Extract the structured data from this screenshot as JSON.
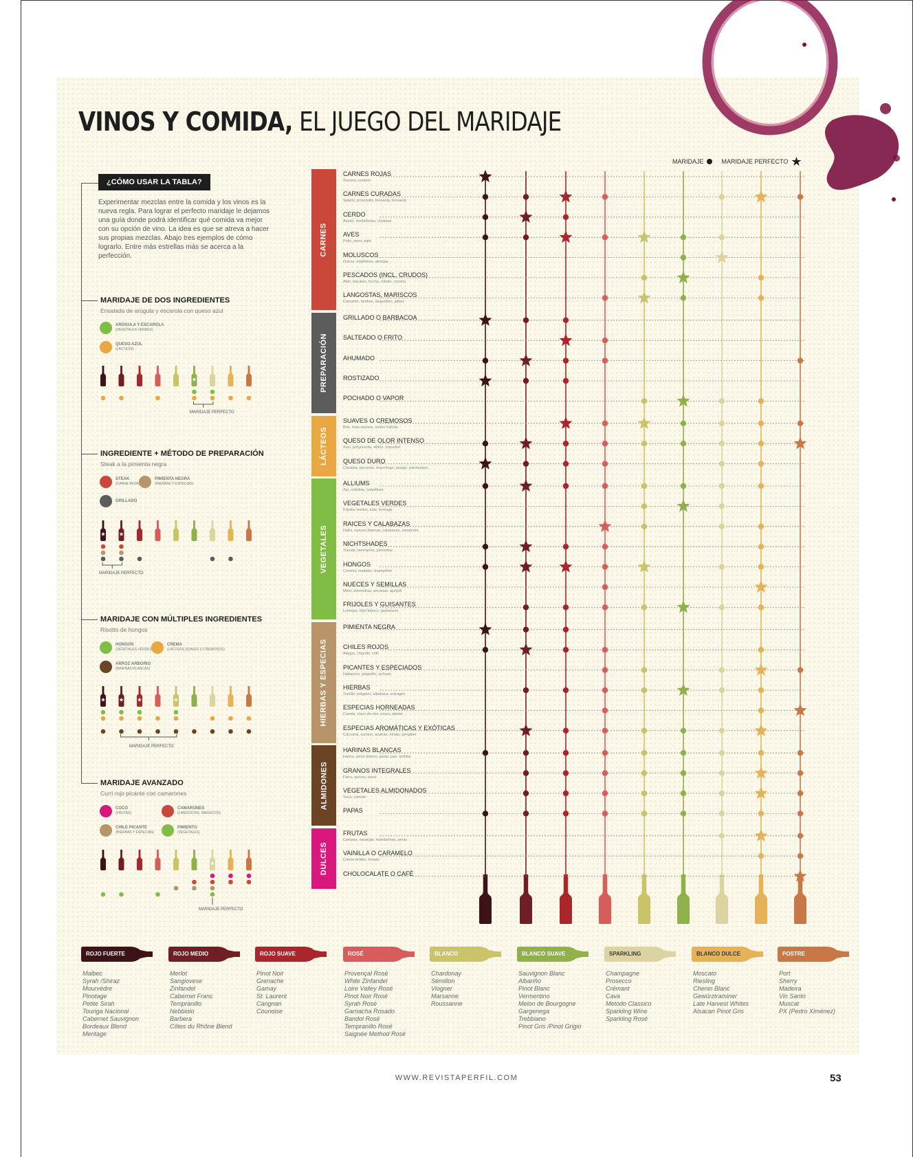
{
  "title": {
    "bold": "VINOS Y COMIDA,",
    "rest": " EL JUEGO DEL MARIDAJE"
  },
  "legend": {
    "pairing": "MARIDAJE",
    "perfect": "MARIDAJE PERFECTO"
  },
  "howto": {
    "heading": "¿CÓMO USAR LA TABLA?",
    "text": "Experimentar mezclas entre la comida y los vinos es la nueva regla. Para lograr el perfecto maridaje le dejamos una guía donde podrá identificar qué comida va mejor con su opción de vino. La idea es que se atreva a hacer sus propias mezclas. Abajo tres ejemplos de cómo lograrlo. Entre más estrellas más se acerca a la perfección."
  },
  "colors": {
    "wines": [
      "#3c1418",
      "#6e1e24",
      "#a8262c",
      "#d75d5d",
      "#c9c46a",
      "#8fb04a",
      "#dcd4a0",
      "#e5b257",
      "#c87846"
    ],
    "categories": {
      "carnes": "#c9483a",
      "preparacion": "#5c5c5c",
      "lacteos": "#e8a740",
      "vegetales": "#7fbd45",
      "hierbas": "#b8946a",
      "almidones": "#6b4426",
      "dulces": "#d9177c"
    }
  },
  "examples": [
    {
      "title": "MARIDAJE DE DOS INGREDIENTES",
      "subtitle": "Ensalada de arúgula y escarola con queso azul",
      "legend": [
        {
          "label": "ARÚGULA Y ESCAROLA",
          "sub": "(VEGETALES VERDES)",
          "color": "#7fbd45"
        },
        {
          "label": "QUESO AZUL",
          "sub": "(LÁCTEOS)",
          "color": "#e8a740"
        }
      ],
      "perfect_label": "MARIDAJE PERFECTO"
    },
    {
      "title": "INGREDIENTE + MÉTODO DE PREPARACIÓN",
      "subtitle": "Steak a la pimienta negra",
      "legend": [
        {
          "label": "STEAK",
          "sub": "(CARNE ROJA)",
          "color": "#c9483a"
        },
        {
          "label": "PIMIENTA NEGRA",
          "sub": "(HIERBAS Y ESPECIAS)",
          "color": "#b8946a"
        },
        {
          "label": "GRILLADO",
          "sub": "",
          "color": "#5c5c5c"
        }
      ],
      "perfect_label": "MARIDAJE PERFECTO"
    },
    {
      "title": "MARIDAJE CON MÚLTIPLES INGREDIENTES",
      "subtitle": "Risotto de hongos",
      "legend": [
        {
          "label": "HONGOS",
          "sub": "(VEGETALES VERDES)",
          "color": "#7fbd45"
        },
        {
          "label": "CREMA",
          "sub": "(LÁCTEOS SUAVES O CREMOSOS)",
          "color": "#e8a740"
        },
        {
          "label": "ARROZ ARBORIO",
          "sub": "(HARINAS BLANCAS)",
          "color": "#6b4426"
        }
      ],
      "perfect_label": "MARIDAJE PERFECTO"
    },
    {
      "title": "MARIDAJE AVANZADO",
      "subtitle": "Curri rojo picante con camarones",
      "legend": [
        {
          "label": "COCO",
          "sub": "(FRUTAS)",
          "color": "#d9177c"
        },
        {
          "label": "CAMARONES",
          "sub": "(LANGOSTAS, MARISCOS)",
          "color": "#c9483a"
        },
        {
          "label": "CHILE PICANTE",
          "sub": "(HIERBAS Y ESPECIAS)",
          "color": "#b8946a"
        },
        {
          "label": "PIMIENTO",
          "sub": "(VEGETALES)",
          "color": "#7fbd45"
        }
      ],
      "perfect_label": "MARIDAJE PERFECTO"
    }
  ],
  "categories": [
    {
      "name": "CARNES",
      "key": "carnes",
      "rows": [
        {
          "name": "CARNES ROJAS",
          "examples": "Ternera, cordero",
          "cells": "S........"
        },
        {
          "name": "CARNES CURADAS",
          "examples": "Salami, prosciutto, bresaola, bresaola",
          "cells": "DDSD..DSD"
        },
        {
          "name": "CERDO",
          "examples": "Asado, medallones, chuletas",
          "cells": "DSD......"
        },
        {
          "name": "AVES",
          "examples": "Pollo, pavo, pato",
          "cells": "DDSDSDD.."
        },
        {
          "name": "MOLUSCOS",
          "examples": "Ostras, mejillones, almejas",
          "cells": ".....DS.."
        },
        {
          "name": "PESCADOS (INCL. CRUDOS)",
          "examples": "Atún, bacalao, trucha, róbalo, corvina",
          "cells": "....DS.D."
        },
        {
          "name": "LANGOSTAS, MARISCOS",
          "examples": "Camarón, lambas, langostino, jaibas",
          "cells": "...DSD.D."
        }
      ]
    },
    {
      "name": "PREPARACIÓN",
      "key": "preparacion",
      "rows": [
        {
          "name": "GRILLADO O BARBACOA",
          "examples": "",
          "cells": "SDD......"
        },
        {
          "name": "SALTEADO O FRITO",
          "examples": "",
          "cells": "..SD....."
        },
        {
          "name": "AHUMADO",
          "examples": "",
          "cells": "DSDD....D"
        },
        {
          "name": "ROSTIZADO",
          "examples": "",
          "cells": "SDD......"
        },
        {
          "name": "POCHADO O VAPOR",
          "examples": "",
          "cells": "....DSDD."
        }
      ]
    },
    {
      "name": "LÁCTEOS",
      "key": "lacteos",
      "rows": [
        {
          "name": "SUAVES O CREMOSOS",
          "examples": "Brie, mascarpone, crème fraîche",
          "cells": "..SDSDDDD"
        },
        {
          "name": "QUESO DE OLOR INTENSO",
          "examples": "Azul, gorgonzola, stilton, roquefort",
          "cells": "DSDDDDDDS"
        },
        {
          "name": "QUESO DURO",
          "examples": "Cheddar, pecorino, manchego, asiago, parmesano",
          "cells": "SDDD..DD."
        }
      ]
    },
    {
      "name": "VEGETALES",
      "key": "vegetales",
      "rows": [
        {
          "name": "ALLIUMS",
          "examples": "Ajo, cebollas, cebollines",
          "cells": "DSDDDDDD."
        },
        {
          "name": "VEGETALES VERDES",
          "examples": "Frijoles verdes, kale, lechuga",
          "cells": "....DSD.."
        },
        {
          "name": "RAICES Y CALABAZAS",
          "examples": "Nabo, nueces blancas, calabazas, zanahoria",
          "cells": "...SD.DD."
        },
        {
          "name": "NICHTSHADES",
          "examples": "Tomate, berenjena, pimientos",
          "cells": "DSDD...D."
        },
        {
          "name": "HONGOS",
          "examples": "Cremini, maitake, champiñón",
          "cells": "DSSDS.DD."
        },
        {
          "name": "NUECES Y SEMILLAS",
          "examples": "Maní, almendras, pecanas, ajonjolí",
          "cells": "...D...S."
        },
        {
          "name": "FRIJOLES Y GUISANTES",
          "examples": "Lentejas, frijol blanco, garbanzos",
          "cells": ".DDDDSDD."
        }
      ]
    },
    {
      "name": "HIERBAS Y ESPECIAS",
      "key": "hierbas",
      "rows": [
        {
          "name": "PIMIENTA NEGRA",
          "examples": "",
          "cells": "SDD......"
        },
        {
          "name": "CHILES ROJOS",
          "examples": "Aleppo, chipotle, chili",
          "cells": "DSDD...D."
        },
        {
          "name": "PICANTES Y ESPECIADOS",
          "examples": "Habanero, jalapeño, sichuan",
          "cells": "...DD.DSD"
        },
        {
          "name": "HIERBAS",
          "examples": "Tomillo, orégano, albahaca, estragón",
          "cells": ".DDDDSDD."
        },
        {
          "name": "ESPECIAS HORNEADAS",
          "examples": "Canela, clavo de olor, maza, alpiste",
          "cells": "...D...DS"
        },
        {
          "name": "ESPECIAS AROMÁTICAS Y EXÓTICAS",
          "examples": "Cúrcuma, comino, azafrán, hinojo, gengibre",
          "cells": ".SDDDDDS."
        }
      ]
    },
    {
      "name": "ALMIDONES",
      "key": "almidones",
      "rows": [
        {
          "name": "HARINAS BLANCAS",
          "examples": "Harina, arroz blanco, pasta, pan, tortillas",
          "cells": "DDDDDDDDD"
        },
        {
          "name": "GRANOS INTEGRALES",
          "examples": "Farro, quinoa, arroz",
          "cells": ".DDDDDDSD"
        },
        {
          "name": "VEGETALES ALMIDONADOS",
          "examples": "Yuca, camote",
          "cells": ".DDDDDDSD"
        },
        {
          "name": "PAPAS",
          "examples": "",
          "cells": "DDDDDDDDD"
        }
      ]
    },
    {
      "name": "DULCES",
      "key": "dulces",
      "rows": [
        {
          "name": "FRUTAS",
          "examples": "Cerezas, naranjas, mandarinas, peras",
          "cells": "......DSD"
        },
        {
          "name": "VAINILLA O CARAMELO",
          "examples": "Crème brûlée, helado",
          "cells": ".......DD"
        },
        {
          "name": "CHOLOCALATE O CAFÉ",
          "examples": "",
          "cells": "........S"
        }
      ]
    }
  ],
  "wine_types": [
    {
      "label": "ROJO FUERTE",
      "text": "#ffffff",
      "wines": [
        "Malbec",
        "Syrah /Shiraz",
        "Mourvèdre",
        "Pinotage",
        "Petite Sirah",
        "Touriga Nacional",
        "Cabernet Sauvignon",
        "Bordeaux Blend",
        "Meritage"
      ]
    },
    {
      "label": "ROJO MEDIO",
      "text": "#ffffff",
      "wines": [
        "Merlot",
        "Sangiovese",
        "Zinfandel",
        "Cabernet Franc",
        "Tempranillo",
        "Nebbiolo",
        "Barbera",
        "Côtes du Rhône Blend"
      ]
    },
    {
      "label": "ROJO SUAVE",
      "text": "#ffffff",
      "wines": [
        "Pinot Noir",
        "Grenache",
        "Gamay",
        "St. Laurent",
        "Carignan",
        "Counoise"
      ]
    },
    {
      "label": "ROSÉ",
      "text": "#ffffff",
      "wines": [
        "Provençal Rosé",
        "White Zinfandel",
        "Loire Valley Rosé",
        "Pinot Noir Rosé",
        "Syrah Rosé",
        "Garnacha Rosado",
        "Bandol Rosé",
        "Tempranillo Rosé",
        "Saignée Method Rosé"
      ]
    },
    {
      "label": "BLANCO",
      "text": "#ffffff",
      "wines": [
        "Chardonay",
        "Sémillon",
        "Viogner",
        "Marsanne",
        "Roussanne"
      ]
    },
    {
      "label": "BLANCO SUAVE",
      "text": "#ffffff",
      "wines": [
        "Sauvignon Blanc",
        "Albariño",
        "Pinot Blanc",
        "Vermentino",
        "Melon de Bourgogne",
        "Gargenega",
        "Trebbiano",
        "Pinot Gris /Pinot Grigio"
      ]
    },
    {
      "label": "SPARKLING",
      "text": "#3a3a3a",
      "wines": [
        "Champagne",
        "Prosecco",
        "Crémant",
        "Cava",
        "Metodo Classico",
        "Sparkling Wine",
        "Sparkling Rosé"
      ]
    },
    {
      "label": "BLANCO DULCE",
      "text": "#3a3a3a",
      "wines": [
        "Moscato",
        "Riesling",
        "Chenin Blanc",
        "Gewürztraminer",
        "Late Harvest Whites",
        "Alsacan Pinot Gris"
      ]
    },
    {
      "label": "POSTRE",
      "text": "#ffffff",
      "wines": [
        "Port",
        "Sherry",
        "Madeira",
        "Vin Santo",
        "Muscat",
        "PX (Pedro Ximénez)"
      ]
    }
  ],
  "footer": {
    "url": "WWW.REVISTAPERFIL.COM",
    "page": "53"
  }
}
